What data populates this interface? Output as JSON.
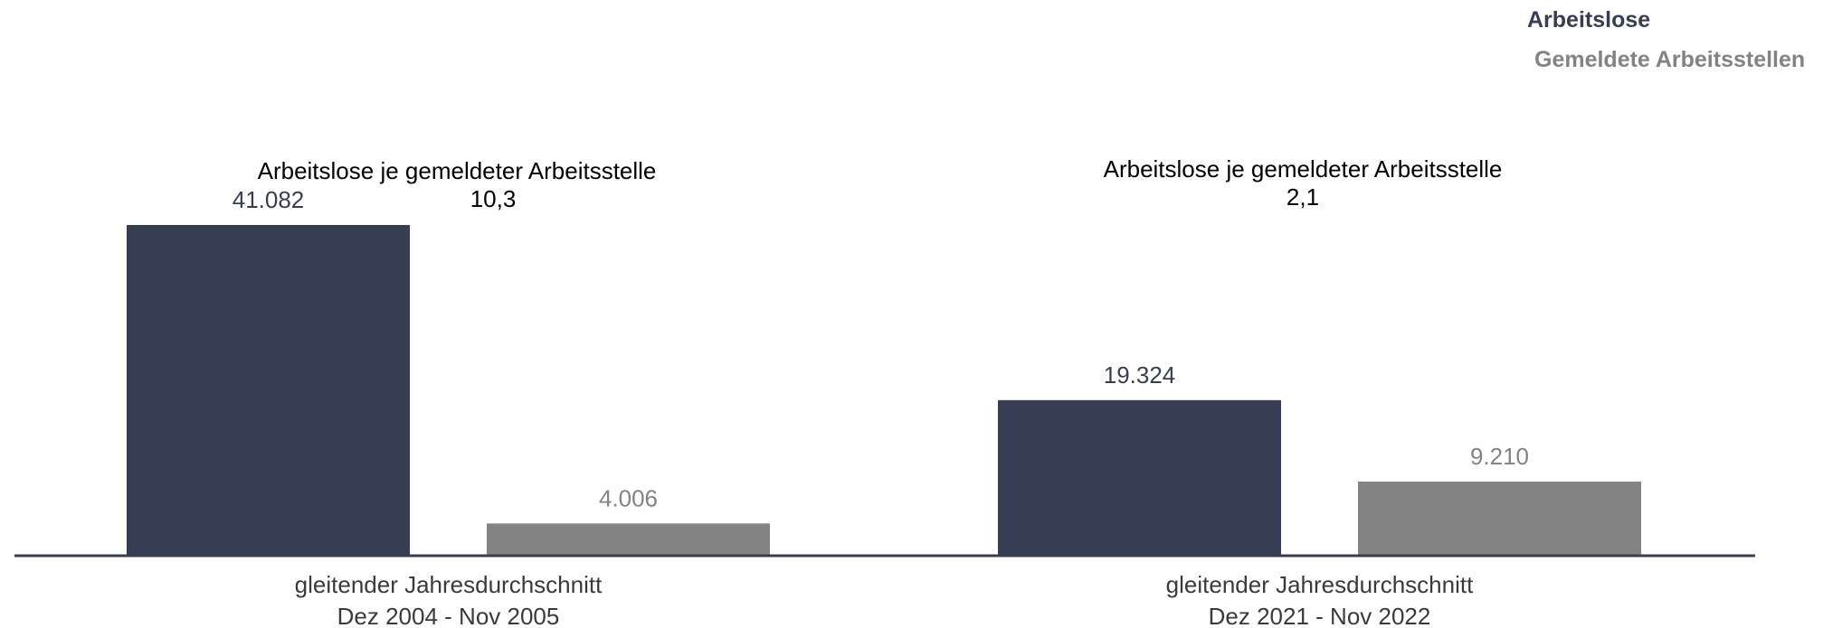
{
  "chart_data": {
    "type": "bar",
    "categories": [
      [
        "gleitender Jahresdurchschnitt",
        "Dez 2004 - Nov 2005"
      ],
      [
        "gleitender Jahresdurchschnitt",
        "Dez 2021 - Nov 2022"
      ]
    ],
    "series": [
      {
        "name": "Arbeitslose",
        "values": [
          41082,
          19324
        ],
        "labels": [
          "41.082",
          "19.324"
        ],
        "color": "#373e53"
      },
      {
        "name": "Gemeldete Arbeitsstellen",
        "values": [
          4006,
          9210
        ],
        "labels": [
          "4.006",
          "9.210"
        ],
        "color": "#838383"
      }
    ],
    "annotations": [
      {
        "title": "Arbeitslose je gemeldeter Arbeitsstelle",
        "value": "10,3"
      },
      {
        "title": "Arbeitslose je gemeldeter Arbeitsstelle",
        "value": "2,1"
      }
    ],
    "ylim": [
      0,
      41082
    ],
    "grid": false,
    "legend_position": "top-right"
  }
}
